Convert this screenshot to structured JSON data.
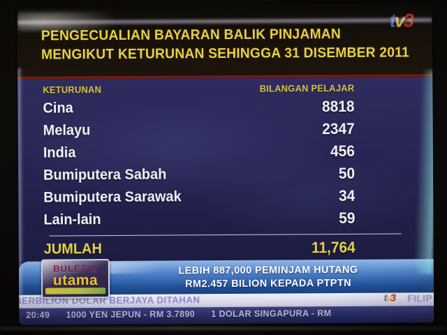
{
  "screen": {
    "title_line1": "PENGECUALIAN BAYARAN BALIK PINJAMAN",
    "title_line2": "MENGIKUT KETURUNAN SEHINGGA 31 DISEMBER 2011",
    "brand": {
      "t": "t",
      "v": "v",
      "three": "3"
    },
    "table": {
      "col_keturunan": "KETURUNAN",
      "col_bilangan": "BILANGAN PELAJAR",
      "rows": [
        {
          "label": "Cina",
          "value": "8818"
        },
        {
          "label": "Melayu",
          "value": "2347"
        },
        {
          "label": "India",
          "value": "456"
        },
        {
          "label": "Bumiputera Sabah",
          "value": "50"
        },
        {
          "label": "Bumiputera Sarawak",
          "value": "34"
        },
        {
          "label": "Lain-lain",
          "value": "59"
        }
      ],
      "total_label": "JUMLAH",
      "total_value": "11,764"
    },
    "lower_third": {
      "program_line1": "BULETIN",
      "program_line2": "utama",
      "banner_line1": "LEBIH 887,000 PEMINJAM HUTANG",
      "banner_line2": "RM2.457 BILION KEPADA PTPTN"
    },
    "ticker": {
      "headline": "BERBILION DOLAR BERJAYA DITAHAN",
      "headline_next": "FILIP",
      "currency": "20:49      1000 YEN JEPUN - RM 3.7890      1 DOLAR SINGAPURA - RM"
    }
  },
  "chart_data": {
    "type": "table",
    "title": "PENGECUALIAN BAYARAN BALIK PINJAMAN MENGIKUT KETURUNAN SEHINGGA 31 DISEMBER 2011",
    "columns": [
      "KETURUNAN",
      "BILANGAN PELAJAR"
    ],
    "rows": [
      [
        "Cina",
        8818
      ],
      [
        "Melayu",
        2347
      ],
      [
        "India",
        456
      ],
      [
        "Bumiputera Sabah",
        50
      ],
      [
        "Bumiputera Sarawak",
        34
      ],
      [
        "Lain-lain",
        59
      ]
    ],
    "total": {
      "label": "JUMLAH",
      "value": 11764
    },
    "source": "TV3 Buletin Utama broadcast graphic",
    "banner": "LEBIH 887,000 PEMINJAM HUTANG RM2.457 BILION KEPADA PTPTN"
  }
}
